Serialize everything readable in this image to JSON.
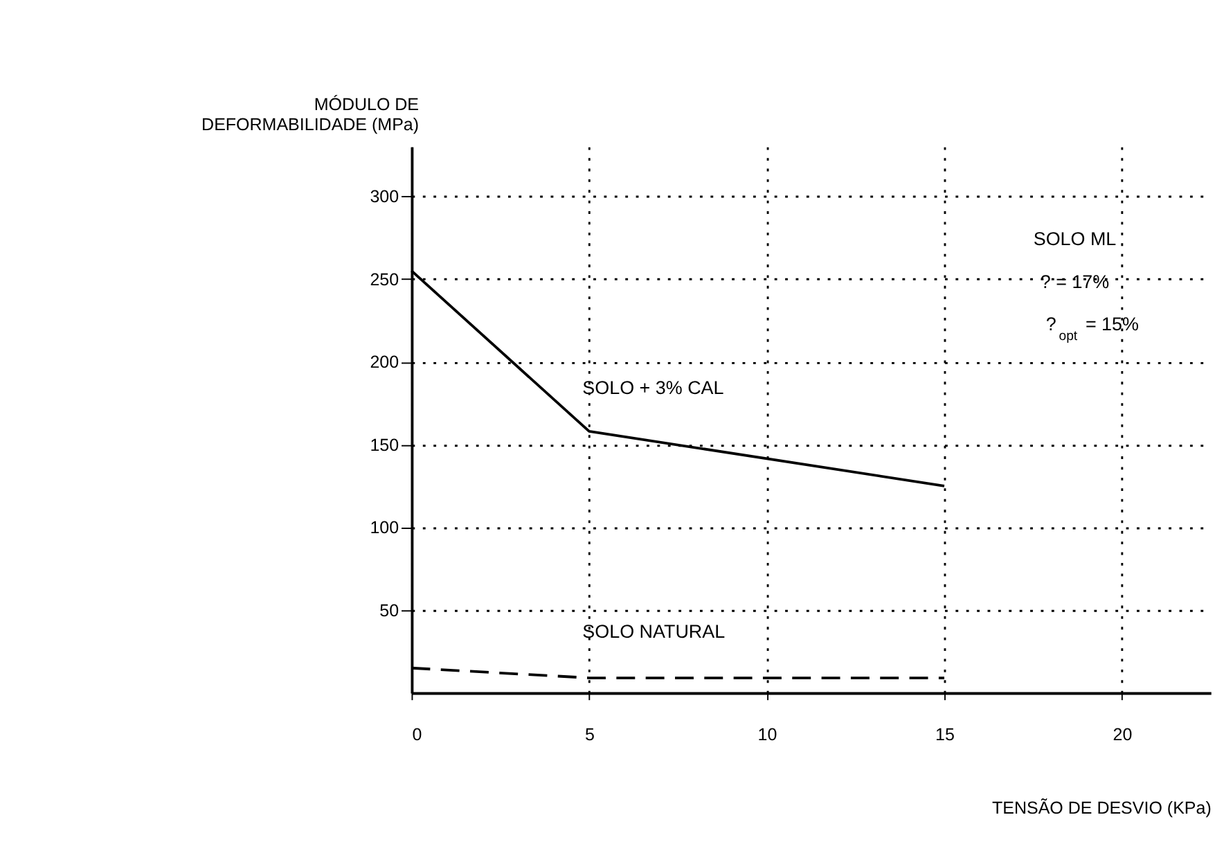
{
  "chart_data": {
    "type": "line",
    "xlabel": "TENSÃO DE DESVIO (KPa)",
    "ylabel": "MÓDULO DE\nDEFORMABILIDADE (MPa)",
    "x": [
      0,
      5,
      15
    ],
    "series": [
      {
        "name": "SOLO + 3% CAL",
        "color": "#000000",
        "line_style": "solid",
        "values": [
          255,
          158,
          125
        ]
      },
      {
        "name": "SOLO NATURAL",
        "color": "#000000",
        "line_style": "dashed",
        "values": [
          15,
          9,
          9
        ]
      }
    ],
    "xlim": [
      0,
      22.5
    ],
    "ylim": [
      0,
      330
    ],
    "xticks": [
      0,
      5,
      10,
      15,
      20
    ],
    "yticks": [
      50,
      100,
      150,
      200,
      250,
      300
    ],
    "grid": true,
    "marker": "none",
    "annotations": [
      "SOLO ML",
      "? = 17%",
      "?$_{opt}$ = 15%"
    ]
  }
}
